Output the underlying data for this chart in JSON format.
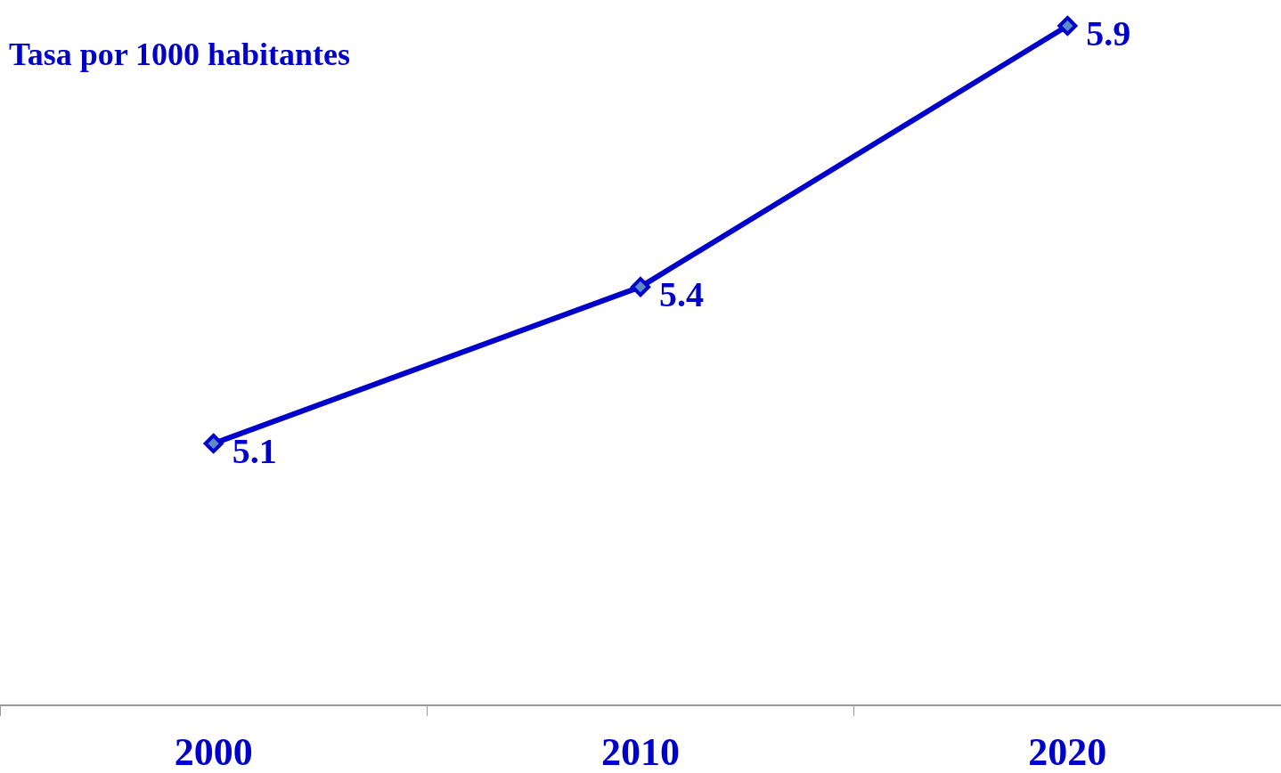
{
  "chart_data": {
    "type": "line",
    "ylabel": "Tasa por 1000 habitantes",
    "categories": [
      "2000",
      "2010",
      "2020"
    ],
    "series": [
      {
        "color": "#0000cc",
        "values": [
          5.1,
          5.4,
          5.9
        ]
      }
    ],
    "data_labels": true,
    "marker": "diamond",
    "line_style": "solid",
    "tick_labels": "x"
  }
}
